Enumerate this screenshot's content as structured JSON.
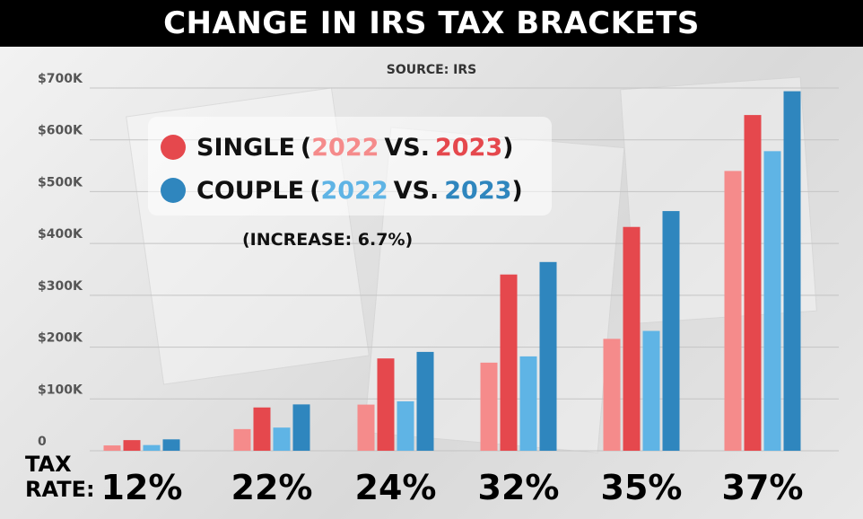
{
  "title": "CHANGE IN IRS TAX BRACKETS",
  "source": "SOURCE: IRS",
  "legend": {
    "single": {
      "label": "SINGLE",
      "open": "(",
      "y2022": "2022",
      "vs": "VS.",
      "y2023": "2023",
      "close": ")"
    },
    "couple": {
      "label": "COUPLE",
      "open": "(",
      "y2022": "2022",
      "vs": "VS.",
      "y2023": "2023",
      "close": ")"
    }
  },
  "increase_note": "(INCREASE: 6.7%)",
  "tax_rate_label": {
    "line1": "TAX",
    "line2": "RATE:"
  },
  "colors": {
    "single_2022": "#f58b8b",
    "single_2023": "#e5484d",
    "couple_2022": "#5fb4e5",
    "couple_2023": "#2f86be",
    "title_bg": "#000000"
  },
  "chart_data": {
    "type": "bar",
    "categories": [
      "12%",
      "22%",
      "24%",
      "32%",
      "35%",
      "37%"
    ],
    "series": [
      {
        "name": "SINGLE 2022",
        "color": "#f58b8b",
        "values": [
          10275,
          41775,
          89075,
          170050,
          215950,
          539900
        ]
      },
      {
        "name": "SINGLE 2023",
        "color": "#e5484d",
        "values": [
          20550,
          83550,
          178150,
          340100,
          431900,
          647850
        ]
      },
      {
        "name": "COUPLE 2022",
        "color": "#5fb4e5",
        "values": [
          11000,
          44725,
          95375,
          182100,
          231250,
          578125
        ]
      },
      {
        "name": "COUPLE 2023",
        "color": "#2f86be",
        "values": [
          22000,
          89450,
          190750,
          364200,
          462500,
          693750
        ]
      }
    ],
    "yticks": [
      "0",
      "$100K",
      "$200K",
      "$300K",
      "$400K",
      "$500K",
      "$600K",
      "$700K"
    ],
    "ylim": [
      0,
      700000
    ],
    "xlabel": "TAX RATE:",
    "ylabel": "",
    "grid": true,
    "legend_position": "top-left"
  }
}
